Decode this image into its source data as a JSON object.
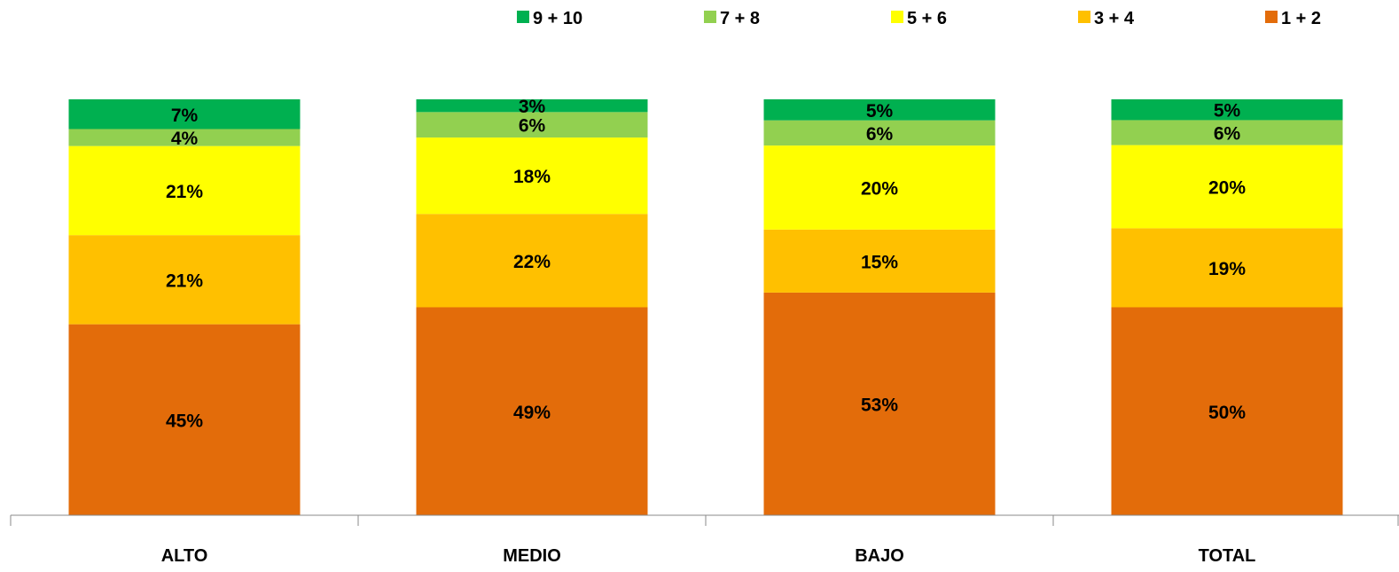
{
  "chart_data": {
    "type": "bar",
    "stacked": true,
    "percent_stacked": true,
    "categories": [
      "ALTO",
      "MEDIO",
      "BAJO",
      "TOTAL"
    ],
    "series": [
      {
        "name": "1 + 2",
        "color": "#E36C0A",
        "values": [
          45,
          49,
          53,
          50
        ],
        "labels": [
          "45%",
          "49%",
          "53%",
          "50%"
        ]
      },
      {
        "name": "3 + 4",
        "color": "#FFC000",
        "values": [
          21,
          22,
          15,
          19
        ],
        "labels": [
          "21%",
          "22%",
          "15%",
          "19%"
        ]
      },
      {
        "name": "5 + 6",
        "color": "#FFFF00",
        "values": [
          21,
          18,
          20,
          20
        ],
        "labels": [
          "21%",
          "18%",
          "20%",
          "20%"
        ]
      },
      {
        "name": "7 + 8",
        "color": "#92D050",
        "values": [
          4,
          6,
          6,
          6
        ],
        "labels": [
          "4%",
          "6%",
          "6%",
          "6%"
        ]
      },
      {
        "name": "9 + 10",
        "color": "#00B050",
        "values": [
          7,
          3,
          5,
          5
        ],
        "labels": [
          "7%",
          "3%",
          "5%",
          "5%"
        ]
      }
    ],
    "legend": {
      "position": "top-right",
      "order": [
        "9 + 10",
        "7 + 8",
        "5 + 6",
        "3 + 4",
        "1 + 2"
      ]
    },
    "title": "",
    "xlabel": "",
    "ylabel": "",
    "grid": false,
    "ylim": [
      0,
      100
    ]
  }
}
